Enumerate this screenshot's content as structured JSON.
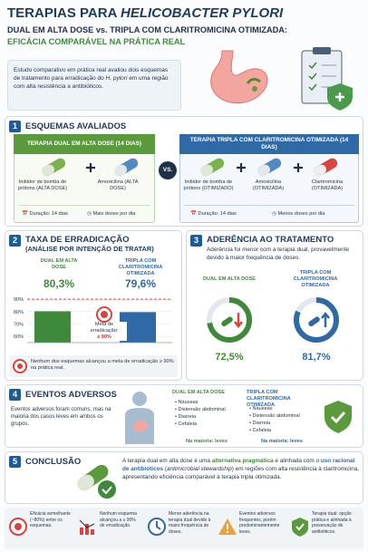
{
  "header": {
    "title_1": "TERAPIAS PARA ",
    "title_2": "HELICOBACTER PYLORI",
    "subtitle": "DUAL EM ALTA DOSE vs. TRIPLA COM CLARITROMICINA OTIMIZADA:",
    "tagline": "EFICÁCIA COMPARÁVEL NA PRÁTICA REAL",
    "intro_1": "Estudo comparativo em prática real avaliou dois esquemas de tratamento para erradicação do ",
    "intro_2": "H. pylori",
    "intro_3": " em uma região com alta resistência a antibióticos."
  },
  "s1": {
    "number": "1",
    "title": "ESQUEMAS AVALIADOS",
    "vs": "VS.",
    "dual": {
      "title": "TERAPIA DUAL EM ALTA DOSE (14 DIAS)",
      "drugs": [
        "Inibidor de bomba de prótons (ALTA DOSE)",
        "Amoxicilina (ALTA DOSE)"
      ],
      "duration": "Duração: 14 dias",
      "note": "Mais doses por dia"
    },
    "triple": {
      "title": "TERAPIA TRIPLA COM CLARITROMICINA OTIMIZADA (14 DIAS)",
      "drugs": [
        "Inibidor de bomba de prótons (OTIMIZADO)",
        "Amoxicilina (OTIMIZADA)",
        "Claritromicina (OTIMIZADA)"
      ],
      "duration": "Duração: 14 dias",
      "note": "Menos doses por dia"
    }
  },
  "s2": {
    "number": "2",
    "title": "TAXA DE ERRADICAÇÃO",
    "subtitle": "(ANÁLISE POR INTENÇÃO DE TRATAR)",
    "chart": {
      "type": "bar",
      "categories": [
        "DUAL EM ALTA DOSE",
        "TRIPLA COM CLARITROMICINA OTIMIZADA"
      ],
      "values": [
        80.3,
        79.6
      ],
      "value_labels": [
        "80,3%",
        "79,6%"
      ],
      "colors": [
        "#3f8a3a",
        "#2f6aa6"
      ],
      "ylim": [
        55,
        93
      ],
      "yticks": [
        {
          "value": 90,
          "label": "90%"
        },
        {
          "value": 80,
          "label": "80%"
        },
        {
          "value": 70,
          "label": "70%"
        },
        {
          "value": 60,
          "label": "60%"
        }
      ],
      "target": {
        "value": 90,
        "label": "Meta de erradicação:",
        "value_label": "≥ 90%"
      }
    },
    "note": "Nenhum dos esquemas alcançou a meta de erradicação ≥ 90% na prática real."
  },
  "s3": {
    "number": "3",
    "title": "ADERÊNCIA AO TRATAMENTO",
    "text": "Aderência foi menor com a terapia dual, provavelmente devido à maior frequência de doses.",
    "chart": {
      "type": "donut",
      "categories": [
        "DUAL EM ALTA DOSE",
        "TRIPLA COM CLARITROMICINA OTIMIZADA"
      ],
      "values": [
        72.5,
        81.7
      ],
      "value_labels": [
        "72,5%",
        "81,7%"
      ],
      "colors": [
        "#3f8a3a",
        "#2f6aa6"
      ]
    }
  },
  "s4": {
    "number": "4",
    "title": "EVENTOS ADVERSOS",
    "text": "Eventos adversos foram comuns, mas na maioria dos casos leves em ambos os grupos.",
    "dual": {
      "title": "DUAL EM ALTA DOSE",
      "items": [
        "Náuseas",
        "Distensão abdominal",
        "Diarreia",
        "Cefaleia"
      ],
      "severity_label": "Na maioria: ",
      "severity": "leves"
    },
    "triple": {
      "title": "TRIPLA COM CLARITROMICINA OTIMIZADA",
      "items": [
        "Náuseas",
        "Distensão abdominal",
        "Diarreia",
        "Cefaleia"
      ],
      "severity_label": "Na maioria: ",
      "severity": "leves"
    }
  },
  "s5": {
    "number": "5",
    "title": "CONCLUSÃO",
    "text_1": "A terapia dual em alta dose é uma ",
    "text_2": "alternativa pragmática",
    "text_3": " e alinhada com o ",
    "text_4": "uso racional de antibióticos",
    "text_5": " (",
    "text_6": "antimicrobial stewardship",
    "text_7": ") em regiões com alta resistência à claritromicina, apresentando eficiência comparável à terapia tripla otimizada."
  },
  "footer": [
    "Eficácia semelhante (~80%) entre os esquemas.",
    "Nenhum esquema alcançou a ≥ 90% de erradicação.",
    "Menor aderência na terapia dual devido à maior frequência de doses.",
    "Eventos adversos frequentes, porém predominantemente leves.",
    "Terapia dual: opção prática e alinhada à preservação de antibióticos."
  ]
}
